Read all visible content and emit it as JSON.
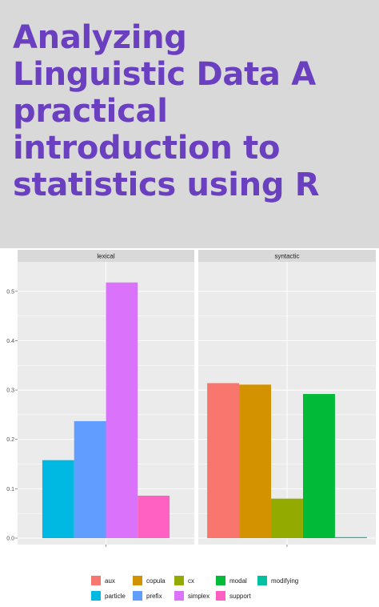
{
  "cover": {
    "title": "Analyzing Linguistic Data A practical introduction to statistics using R"
  },
  "colors": {
    "title": "#6a3fc0",
    "title_band": "#d9d9d9",
    "panel_bg": "#ebebeb",
    "strip_bg": "#d9d9d9",
    "grid": "#ffffff"
  },
  "chart_data": {
    "type": "bar",
    "facets": [
      "lexical",
      "syntactic"
    ],
    "ylim": [
      0,
      0.55
    ],
    "yticks": [
      "0.0",
      "0.1",
      "0.2",
      "0.3",
      "0.4",
      "0.5"
    ],
    "grid": true,
    "legend_position": "bottom",
    "categories": [
      "aux",
      "copula",
      "cx",
      "modal",
      "modifying",
      "particle",
      "prefix",
      "simplex",
      "support"
    ],
    "colors": {
      "aux": "#f8766d",
      "copula": "#d39200",
      "cx": "#93aa00",
      "modal": "#00ba38",
      "modifying": "#00c19f",
      "particle": "#00b9e3",
      "prefix": "#619cff",
      "simplex": "#db72fb",
      "support": "#ff61c3"
    },
    "panels": [
      {
        "facet": "lexical",
        "bars": [
          {
            "category": "particle",
            "value": 0.158
          },
          {
            "category": "prefix",
            "value": 0.237
          },
          {
            "category": "simplex",
            "value": 0.518
          },
          {
            "category": "support",
            "value": 0.086
          }
        ]
      },
      {
        "facet": "syntactic",
        "bars": [
          {
            "category": "aux",
            "value": 0.314
          },
          {
            "category": "copula",
            "value": 0.311
          },
          {
            "category": "cx",
            "value": 0.08
          },
          {
            "category": "modal",
            "value": 0.292
          },
          {
            "category": "modifying",
            "value": 0.002
          }
        ]
      }
    ]
  }
}
